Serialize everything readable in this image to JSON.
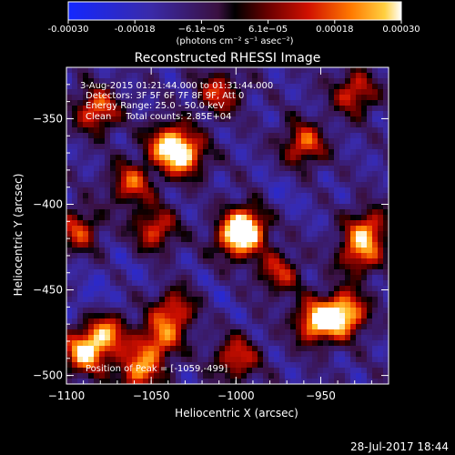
{
  "chart_data": {
    "type": "heatmap",
    "title": "Reconstructed RHESSI Image",
    "xlabel": "Heliocentric X (arcsec)",
    "ylabel": "Heliocentric Y (arcsec)",
    "xlim": [
      -1100,
      -910
    ],
    "ylim": [
      -505,
      -320
    ],
    "xticks": [
      -1100,
      -1050,
      -1000,
      -950
    ],
    "yticks": [
      -500,
      -450,
      -400,
      -350
    ],
    "colorbar": {
      "min": -0.0003,
      "max": 0.0003,
      "tick_labels": [
        "-0.00030",
        "-0.00018",
        "−6.1e−05",
        "6.1e−05",
        "0.00018",
        "0.00030"
      ],
      "unit_label": "(photons cm⁻² s⁻¹ asec⁻²)"
    },
    "annotations": [
      "3-Aug-2015 01:21:44.000 to 01:31:44.000",
      "Detectors: 3F 5F 6F 7F 8F 9F, Att 0",
      "Energy Range: 25.0 - 50.0 keV",
      "Clean     Total counts: 2.85E+04",
      "Position of Peak = [-1059,-499]"
    ],
    "hotspots": [
      {
        "x": -936,
        "y": -464,
        "v": 0.0003
      },
      {
        "x": -953,
        "y": -469,
        "v": 0.00026
      },
      {
        "x": -1090,
        "y": -487,
        "v": 0.00024
      },
      {
        "x": -1077,
        "y": -476,
        "v": 0.0002
      },
      {
        "x": -1046,
        "y": -480,
        "v": 0.00018
      },
      {
        "x": -1036,
        "y": -462,
        "v": 0.00016
      },
      {
        "x": -1082,
        "y": -345,
        "v": 0.0002
      },
      {
        "x": -1040,
        "y": -365,
        "v": 0.00022
      },
      {
        "x": -1030,
        "y": -372,
        "v": 0.0002
      },
      {
        "x": -1062,
        "y": -388,
        "v": 0.00016
      },
      {
        "x": -1000,
        "y": -420,
        "v": 0.00022
      },
      {
        "x": -993,
        "y": -412,
        "v": 0.0002
      },
      {
        "x": -960,
        "y": -365,
        "v": 0.00018
      },
      {
        "x": -930,
        "y": -335,
        "v": 0.00016
      },
      {
        "x": -922,
        "y": -415,
        "v": 0.00018
      },
      {
        "x": -928,
        "y": -430,
        "v": 0.00014
      },
      {
        "x": -1010,
        "y": -335,
        "v": 0.00014
      },
      {
        "x": -1048,
        "y": -415,
        "v": 0.00016
      },
      {
        "x": -1058,
        "y": -498,
        "v": 0.0002
      },
      {
        "x": -1000,
        "y": -490,
        "v": 0.00016
      },
      {
        "x": -1093,
        "y": -415,
        "v": 0.00014
      },
      {
        "x": -975,
        "y": -440,
        "v": 0.00012
      }
    ],
    "coldspots": [
      {
        "x": -1085,
        "y": -455,
        "v": -0.00018
      },
      {
        "x": -975,
        "y": -395,
        "v": -0.00016
      },
      {
        "x": -1065,
        "y": -435,
        "v": -0.00014
      },
      {
        "x": -1010,
        "y": -455,
        "v": -0.00014
      },
      {
        "x": -955,
        "y": -405,
        "v": -0.00012
      },
      {
        "x": -1045,
        "y": -445,
        "v": -0.00012
      }
    ]
  },
  "footer": {
    "timestamp": "28-Jul-2017 18:44"
  }
}
